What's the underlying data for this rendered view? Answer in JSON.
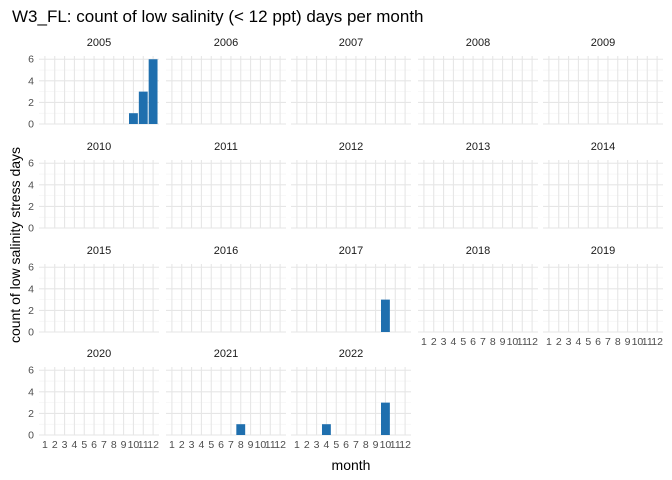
{
  "chart_data": {
    "type": "bar",
    "title": "W3_FL: count of low salinity (< 12 ppt) days per month",
    "xlabel": "month",
    "ylabel": "count of low salinity stress days",
    "x_ticks": [
      "1",
      "2",
      "3",
      "4",
      "5",
      "6",
      "7",
      "8",
      "9",
      "10",
      "11",
      "12"
    ],
    "y_ticks": [
      0,
      2,
      4,
      6
    ],
    "ylim": [
      0,
      6.3
    ],
    "grid": true,
    "bar_color": "#1f6fae",
    "facets": [
      {
        "label": "2005",
        "bars": [
          {
            "month": 10,
            "value": 1
          },
          {
            "month": 11,
            "value": 3
          },
          {
            "month": 12,
            "value": 6
          }
        ]
      },
      {
        "label": "2006",
        "bars": []
      },
      {
        "label": "2007",
        "bars": []
      },
      {
        "label": "2008",
        "bars": []
      },
      {
        "label": "2009",
        "bars": []
      },
      {
        "label": "2010",
        "bars": []
      },
      {
        "label": "2011",
        "bars": []
      },
      {
        "label": "2012",
        "bars": []
      },
      {
        "label": "2013",
        "bars": []
      },
      {
        "label": "2014",
        "bars": []
      },
      {
        "label": "2015",
        "bars": []
      },
      {
        "label": "2016",
        "bars": []
      },
      {
        "label": "2017",
        "bars": [
          {
            "month": 10,
            "value": 3
          }
        ]
      },
      {
        "label": "2018",
        "bars": []
      },
      {
        "label": "2019",
        "bars": []
      },
      {
        "label": "2020",
        "bars": []
      },
      {
        "label": "2021",
        "bars": [
          {
            "month": 8,
            "value": 1
          }
        ]
      },
      {
        "label": "2022",
        "bars": [
          {
            "month": 4,
            "value": 1
          },
          {
            "month": 10,
            "value": 3
          }
        ]
      }
    ]
  }
}
